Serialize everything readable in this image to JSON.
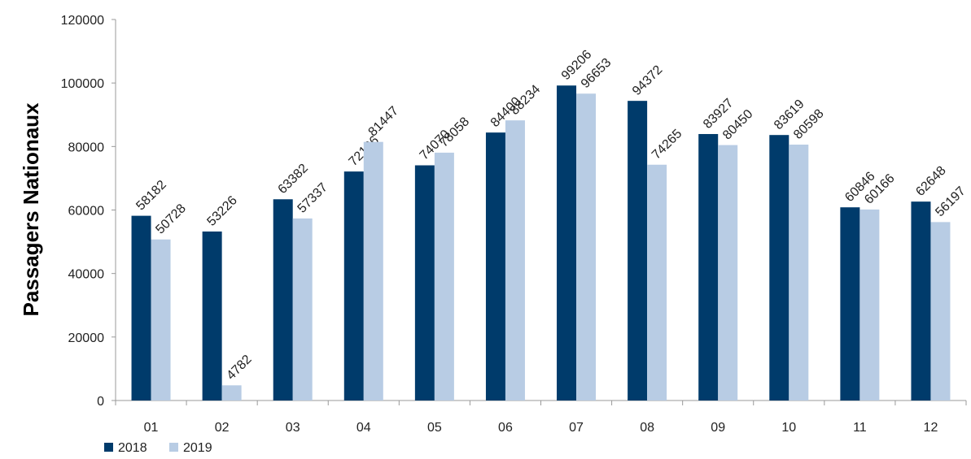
{
  "chart_data": {
    "type": "bar",
    "title": "",
    "xlabel": "",
    "ylabel": "Passagers Nationaux",
    "ylim": [
      0,
      120000
    ],
    "yticks": [
      "0",
      "20000",
      "40000",
      "60000",
      "80000",
      "100000",
      "120000"
    ],
    "categories": [
      "01",
      "02",
      "03",
      "04",
      "05",
      "06",
      "07",
      "08",
      "09",
      "10",
      "11",
      "12"
    ],
    "series": [
      {
        "name": "2018",
        "color": "#003b6b",
        "values": [
          58182,
          53226,
          63382,
          72126,
          74070,
          84400,
          99206,
          94372,
          83927,
          83619,
          60846,
          62648
        ],
        "labels": [
          "58182",
          "53226",
          "63382",
          "72126",
          "74070",
          "84400",
          "99206",
          "94372",
          "83927",
          "83619",
          "60846",
          "62648"
        ]
      },
      {
        "name": "2019",
        "color": "#b8cce4",
        "values": [
          50728,
          4782,
          57337,
          81447,
          78058,
          88234,
          96653,
          74265,
          80450,
          80598,
          60166,
          56197
        ],
        "labels": [
          "50728",
          "4782",
          "57337",
          "81447",
          "78058",
          "88234",
          "96653",
          "74265",
          "80450",
          "80598",
          "60166",
          "56197"
        ]
      }
    ],
    "legend_position": "bottom-left",
    "grid": false
  }
}
